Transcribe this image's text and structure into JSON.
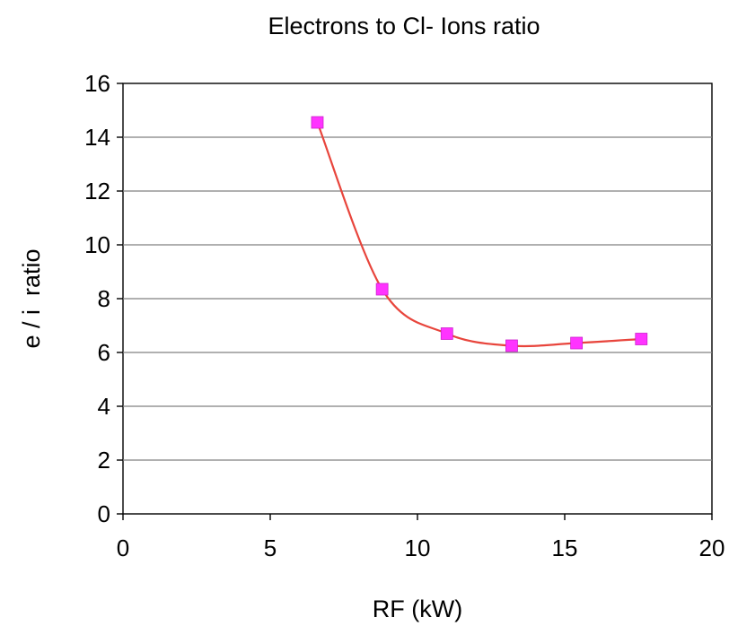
{
  "chart_data": {
    "type": "scatter",
    "title": "Electrons to Cl- Ions ratio",
    "xlabel": "RF (kW)",
    "ylabel": "e / i  ratio",
    "xlim": [
      0,
      20
    ],
    "ylim": [
      0,
      16
    ],
    "x_ticks": [
      "0",
      "5",
      "10",
      "15",
      "20"
    ],
    "y_ticks": [
      "0",
      "2",
      "4",
      "6",
      "8",
      "10",
      "12",
      "14",
      "16"
    ],
    "grid": "horizontal",
    "legend": "none",
    "smooth_line": true,
    "series": [
      {
        "x": [
          6.6,
          8.8,
          11.0,
          13.2,
          15.4,
          17.6
        ],
        "y": [
          14.55,
          8.35,
          6.7,
          6.25,
          6.35,
          6.5
        ],
        "line_color": "#e8453c",
        "marker": "square",
        "marker_color": "#ff33ff"
      }
    ]
  }
}
